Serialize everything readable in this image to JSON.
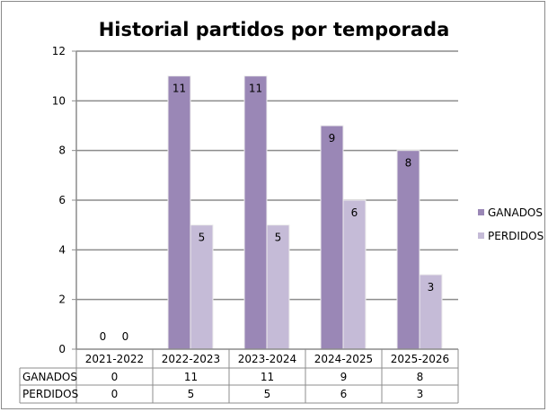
{
  "chart_data": {
    "type": "bar",
    "title": "Historial partidos por temporada",
    "categories": [
      "2021-2022",
      "2022-2023",
      "2023-2024",
      "2024-2025",
      "2025-2026"
    ],
    "series": [
      {
        "name": "GANADOS",
        "values": [
          0,
          11,
          11,
          9,
          8
        ],
        "color": "#9a87b6"
      },
      {
        "name": "PERDIDOS",
        "values": [
          0,
          5,
          5,
          6,
          3
        ],
        "color": "#c5bbd7"
      }
    ],
    "yticks": [
      0,
      2,
      4,
      6,
      8,
      10,
      12
    ],
    "ylim": [
      0,
      12
    ],
    "grid": true,
    "legend": "right",
    "data_table": true
  }
}
